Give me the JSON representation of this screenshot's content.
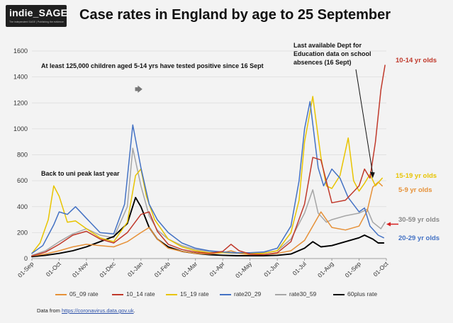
{
  "header": {
    "logo_text": "indie_SAGE",
    "logo_subtext": "The independent SAGE | Publishing the evidence",
    "title": "Case rates in England by age to 25 September"
  },
  "annotations": {
    "children_note": "At least 125,000 children aged 5-14 yrs have tested positive since 16 Sept",
    "uni_peak": "Back to uni peak last year",
    "dfe_note_line1": "Last available Dept for",
    "dfe_note_line2": "Education data on school",
    "dfe_note_line3": "absences (16 Sept)"
  },
  "end_labels": [
    {
      "text": "10-14 yr olds",
      "color": "#c0392b"
    },
    {
      "text": "15-19 yr olds",
      "color": "#e8c400"
    },
    {
      "text": "5-9 yr olds",
      "color": "#e69138"
    },
    {
      "text": "30-59 yr olds",
      "color": "#888888"
    },
    {
      "text": "20-29 yr olds",
      "color": "#4472c4"
    }
  ],
  "footer": {
    "prefix": "Data from ",
    "link": "https://coronavirus.data.gov.uk",
    "suffix": "."
  },
  "chart_data": {
    "type": "line",
    "title": "Case rates in England by age to 25 September",
    "xlabel": "",
    "ylabel": "",
    "ylim": [
      0,
      1600
    ],
    "yticks": [
      0,
      200,
      400,
      600,
      800,
      1000,
      1200,
      1400,
      1600
    ],
    "x_tick_labels": [
      "01-Sep",
      "01-Oct",
      "01-Nov",
      "01-Dec",
      "01-Jan",
      "01-Feb",
      "01-Mar",
      "01-Apr",
      "01-May",
      "01-Jun",
      "01-Jul",
      "01-Aug",
      "01-Sep",
      "01-Oct"
    ],
    "x_unit": "months since 01-Sep-2020",
    "xlim": [
      0,
      13
    ],
    "grid": true,
    "legend_position": "bottom",
    "series": [
      {
        "name": "05_09 rate",
        "color": "#e69138",
        "x": [
          0,
          0.5,
          1,
          1.5,
          2,
          2.5,
          3,
          3.5,
          4,
          4.3,
          4.6,
          5,
          5.5,
          6,
          6.5,
          7,
          7.3,
          7.6,
          8,
          8.5,
          9,
          9.5,
          10,
          10.3,
          10.6,
          11,
          11.5,
          12,
          12.3,
          12.5,
          12.7,
          12.85
        ],
        "values": [
          20,
          35,
          60,
          90,
          110,
          100,
          90,
          130,
          200,
          240,
          150,
          80,
          55,
          40,
          35,
          45,
          60,
          40,
          30,
          30,
          40,
          60,
          140,
          250,
          360,
          240,
          220,
          250,
          370,
          550,
          590,
          560
        ]
      },
      {
        "name": "10_14 rate",
        "color": "#c0392b",
        "x": [
          0,
          0.5,
          1,
          1.5,
          2,
          2.5,
          3,
          3.5,
          4,
          4.3,
          4.6,
          5,
          5.5,
          6,
          6.5,
          7,
          7.3,
          7.6,
          8,
          8.5,
          9,
          9.5,
          10,
          10.3,
          10.6,
          11,
          11.5,
          12,
          12.2,
          12.4,
          12.6,
          12.8,
          12.95
        ],
        "values": [
          20,
          50,
          110,
          180,
          210,
          150,
          120,
          200,
          340,
          360,
          210,
          110,
          70,
          50,
          40,
          55,
          110,
          60,
          35,
          30,
          45,
          130,
          420,
          780,
          760,
          430,
          450,
          560,
          690,
          620,
          900,
          1300,
          1490
        ]
      },
      {
        "name": "15_19 rate",
        "color": "#e8c400",
        "x": [
          0,
          0.3,
          0.6,
          0.8,
          1,
          1.3,
          1.6,
          2,
          2.5,
          3,
          3.5,
          3.8,
          4,
          4.2,
          4.5,
          5,
          5.5,
          6,
          6.5,
          7,
          7.5,
          8,
          8.5,
          9,
          9.5,
          9.8,
          10,
          10.3,
          10.6,
          10.8,
          11,
          11.3,
          11.6,
          11.8,
          12,
          12.2,
          12.4,
          12.6,
          12.85
        ],
        "values": [
          40,
          120,
          300,
          560,
          480,
          280,
          290,
          230,
          160,
          130,
          280,
          640,
          690,
          480,
          300,
          150,
          90,
          60,
          45,
          45,
          45,
          40,
          40,
          60,
          200,
          450,
          900,
          1250,
          780,
          560,
          540,
          640,
          930,
          600,
          520,
          580,
          650,
          560,
          620
        ]
      },
      {
        "name": "rate20_29",
        "color": "#4472c4",
        "x": [
          0,
          0.4,
          0.8,
          1,
          1.3,
          1.6,
          2,
          2.5,
          3,
          3.4,
          3.7,
          4,
          4.3,
          4.6,
          5,
          5.5,
          6,
          6.5,
          7,
          7.5,
          8,
          8.5,
          9,
          9.5,
          9.8,
          10,
          10.2,
          10.5,
          10.7,
          11,
          11.3,
          11.6,
          12,
          12.2,
          12.4,
          12.7,
          12.9
        ],
        "values": [
          40,
          100,
          260,
          360,
          340,
          400,
          310,
          200,
          190,
          420,
          1030,
          700,
          420,
          300,
          200,
          120,
          80,
          60,
          50,
          45,
          45,
          50,
          80,
          250,
          600,
          1000,
          1210,
          700,
          560,
          690,
          620,
          470,
          360,
          390,
          250,
          180,
          160
        ]
      },
      {
        "name": "rate30_59",
        "color": "#a6a6a6",
        "x": [
          0,
          0.5,
          1,
          1.5,
          2,
          2.5,
          3,
          3.5,
          3.7,
          4,
          4.3,
          4.6,
          5,
          5.5,
          6,
          6.5,
          7,
          7.5,
          8,
          8.5,
          9,
          9.5,
          10,
          10.3,
          10.5,
          10.8,
          11,
          11.5,
          12,
          12.3,
          12.5,
          12.8,
          12.95
        ],
        "values": [
          25,
          60,
          130,
          190,
          230,
          180,
          160,
          400,
          850,
          560,
          330,
          220,
          150,
          100,
          70,
          55,
          45,
          40,
          40,
          45,
          60,
          150,
          350,
          530,
          350,
          280,
          300,
          330,
          350,
          380,
          280,
          230,
          280
        ]
      },
      {
        "name": "60plus rate",
        "color": "#000000",
        "x": [
          0,
          0.5,
          1,
          1.5,
          2,
          2.5,
          3,
          3.5,
          3.8,
          4,
          4.3,
          4.6,
          5,
          5.5,
          6,
          6.5,
          7,
          7.5,
          8,
          8.5,
          9,
          9.5,
          10,
          10.3,
          10.6,
          11,
          11.5,
          12,
          12.2,
          12.5,
          12.7,
          12.9
        ],
        "values": [
          15,
          25,
          40,
          60,
          90,
          130,
          170,
          270,
          470,
          400,
          240,
          150,
          90,
          55,
          40,
          30,
          25,
          22,
          22,
          22,
          25,
          35,
          80,
          130,
          90,
          100,
          130,
          160,
          180,
          150,
          120,
          120
        ]
      }
    ]
  }
}
